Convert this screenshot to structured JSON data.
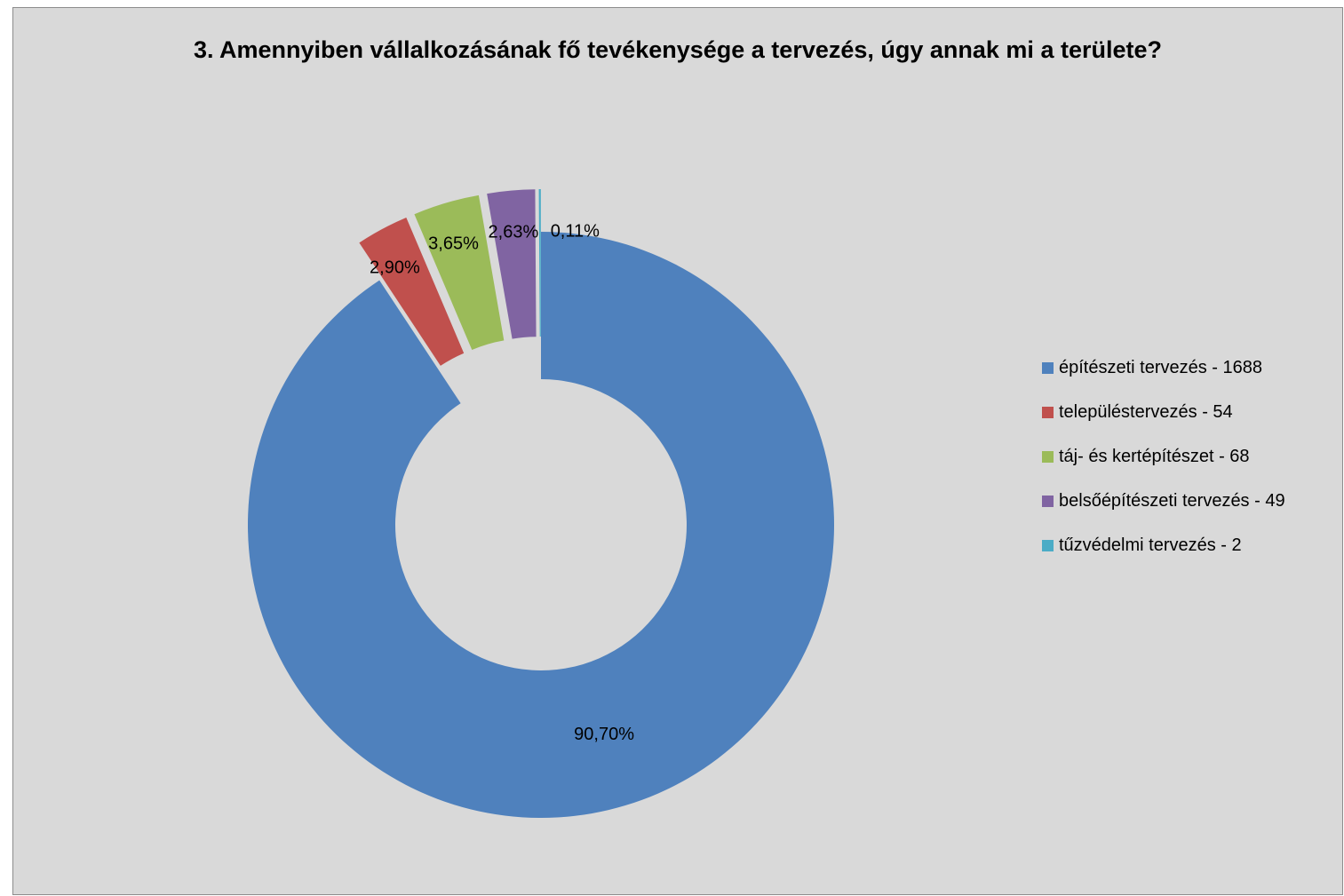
{
  "chart_data": {
    "type": "doughnut",
    "title": "3. Amennyiben vállalkozásának fő tevékenysége a tervezés, úgy annak mi a területe?",
    "categories": [
      "építészeti tervezés - 1688",
      "településtervezés - 54",
      "táj- és kertépítészet - 68",
      "belsőépítészeti tervezés - 49",
      "tűzvédelmi tervezés - 2"
    ],
    "counts": [
      1688,
      54,
      68,
      49,
      2
    ],
    "values": [
      90.7,
      2.9,
      3.65,
      2.63,
      0.11
    ],
    "data_labels": [
      "90,70%",
      "2,90%",
      "3,65%",
      "2,63%",
      "0,11%"
    ],
    "colors": [
      "#4f81bd",
      "#c0504d",
      "#9bbb59",
      "#8064a2",
      "#4bacc6"
    ],
    "exploded_slices": [
      1,
      2,
      3,
      4
    ],
    "legend_position": "right",
    "background": "#d9d9d9"
  }
}
